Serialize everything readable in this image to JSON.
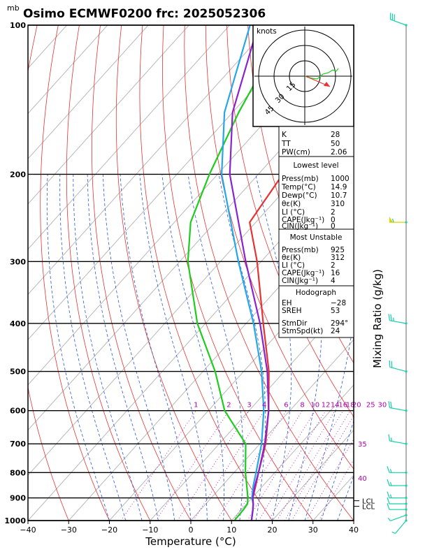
{
  "title": "Osimo ECMWF0200  frc: 2025052306",
  "pressure_unit": "mb",
  "chart_data": {
    "type": "line",
    "title": "Osimo ECMWF0200  frc: 2025052306",
    "xlabel": "Temperature (°C)",
    "ylabel": "Mixing Ratio (g/kg)",
    "x_ticks": [
      -40,
      -30,
      -20,
      -10,
      0,
      10,
      20,
      30,
      40
    ],
    "y_ticks": [
      100,
      200,
      300,
      400,
      500,
      600,
      700,
      800,
      900,
      1000
    ],
    "xlim": [
      -40,
      40
    ],
    "ylim": [
      1000,
      100
    ],
    "y_scale": "log-pressure",
    "mixing_ratio_labels": [
      "1",
      "2",
      "3",
      "4",
      "6",
      "8",
      "10",
      "12",
      "14",
      "16",
      "18",
      "20",
      "25",
      "30"
    ],
    "theta_e_labels": [
      "35",
      "40"
    ],
    "series": [
      {
        "color": "#e53333",
        "p": [
          1000,
          950,
          925,
          900,
          850,
          800,
          700,
          600,
          500,
          400,
          300,
          250,
          200,
          150,
          100
        ],
        "t": [
          14.9,
          12.8,
          11.6,
          10.2,
          8.2,
          6.0,
          1.4,
          -5.2,
          -13.8,
          -25.8,
          -41.0,
          -51.5,
          -54.0,
          -52.5,
          -51.0
        ]
      },
      {
        "color": "#1ecc1e",
        "p": [
          1000,
          950,
          925,
          900,
          850,
          800,
          700,
          600,
          500,
          400,
          300,
          250,
          200,
          150,
          100
        ],
        "t": [
          10.7,
          10.5,
          10.2,
          9.0,
          6.0,
          2.8,
          -3.5,
          -16.0,
          -27.0,
          -42.0,
          -58.0,
          -66.0,
          -72.0,
          -78.5,
          -86.0
        ]
      },
      {
        "color": "#27a6e8",
        "p": [
          1000,
          950,
          925,
          900,
          850,
          800,
          700,
          600,
          500,
          400,
          300,
          200,
          150,
          100
        ],
        "t": [
          14.9,
          12.8,
          11.6,
          10.0,
          7.6,
          5.4,
          0.4,
          -6.4,
          -15.6,
          -28.2,
          -45.6,
          -69.0,
          -82.0,
          -95.0
        ]
      },
      {
        "color": "#8a22d0",
        "p": [
          1000,
          950,
          925,
          900,
          850,
          800,
          700,
          600,
          500,
          400,
          300,
          200,
          150,
          100
        ],
        "t": [
          14.9,
          12.8,
          11.6,
          10.2,
          8.0,
          6.0,
          1.2,
          -5.2,
          -14.2,
          -26.6,
          -43.8,
          -67.0,
          -80.0,
          -93.0
        ]
      }
    ],
    "lcl_labels": [
      "LCL",
      "LCL"
    ],
    "wind_barbs": [
      {
        "p": 100,
        "dir": 290,
        "spd": 30
      },
      {
        "p": 250,
        "dir": 270,
        "spd": 55
      },
      {
        "p": 400,
        "dir": 280,
        "spd": 25
      },
      {
        "p": 500,
        "dir": 285,
        "spd": 20
      },
      {
        "p": 600,
        "dir": 280,
        "spd": 20
      },
      {
        "p": 700,
        "dir": 280,
        "spd": 15
      },
      {
        "p": 800,
        "dir": 270,
        "spd": 15
      },
      {
        "p": 850,
        "dir": 270,
        "spd": 15
      },
      {
        "p": 900,
        "dir": 270,
        "spd": 15
      },
      {
        "p": 925,
        "dir": 270,
        "spd": 10
      },
      {
        "p": 950,
        "dir": 270,
        "spd": 10
      },
      {
        "p": 975,
        "dir": 250,
        "spd": 5
      },
      {
        "p": 1000,
        "dir": 220,
        "spd": 5
      }
    ]
  },
  "hodograph": {
    "unit_label": "knots",
    "ring_labels": [
      "15",
      "30",
      "45"
    ]
  },
  "indices": {
    "rows": [
      {
        "label": "K",
        "value": "28"
      },
      {
        "label": "TT",
        "value": "50"
      },
      {
        "label": "PW(cm)",
        "value": "2.06"
      }
    ]
  },
  "lowest_level": {
    "header": "Lowest level",
    "rows": [
      {
        "label": "Press(mb)",
        "value": "1000"
      },
      {
        "label": "Temp(°C)",
        "value": "14.9"
      },
      {
        "label": "Dewp(°C)",
        "value": "10.7"
      },
      {
        "label": "θε(K)",
        "value": "310"
      },
      {
        "label": "LI (°C)",
        "value": "2"
      },
      {
        "label": "CAPE(Jkg⁻¹)",
        "value": "0"
      },
      {
        "label": "CIN(Jkg⁻¹)",
        "value": "0"
      }
    ]
  },
  "most_unstable": {
    "header": "Most Unstable",
    "rows": [
      {
        "label": "Press(mb)",
        "value": "925"
      },
      {
        "label": "θε(K)",
        "value": "312"
      },
      {
        "label": "LI (°C)",
        "value": "2"
      },
      {
        "label": "CAPE(Jkg⁻¹)",
        "value": "16"
      },
      {
        "label": "CIN(Jkg⁻¹)",
        "value": "4"
      }
    ]
  },
  "hodo_params": {
    "header": "Hodograph",
    "rows": [
      {
        "label": "EH",
        "value": "−28"
      },
      {
        "label": "SREH",
        "value": "53"
      },
      {
        "label": "",
        "value": ""
      },
      {
        "label": "StmDir",
        "value": "294°"
      },
      {
        "label": "StmSpd(kt)",
        "value": "24"
      }
    ]
  }
}
